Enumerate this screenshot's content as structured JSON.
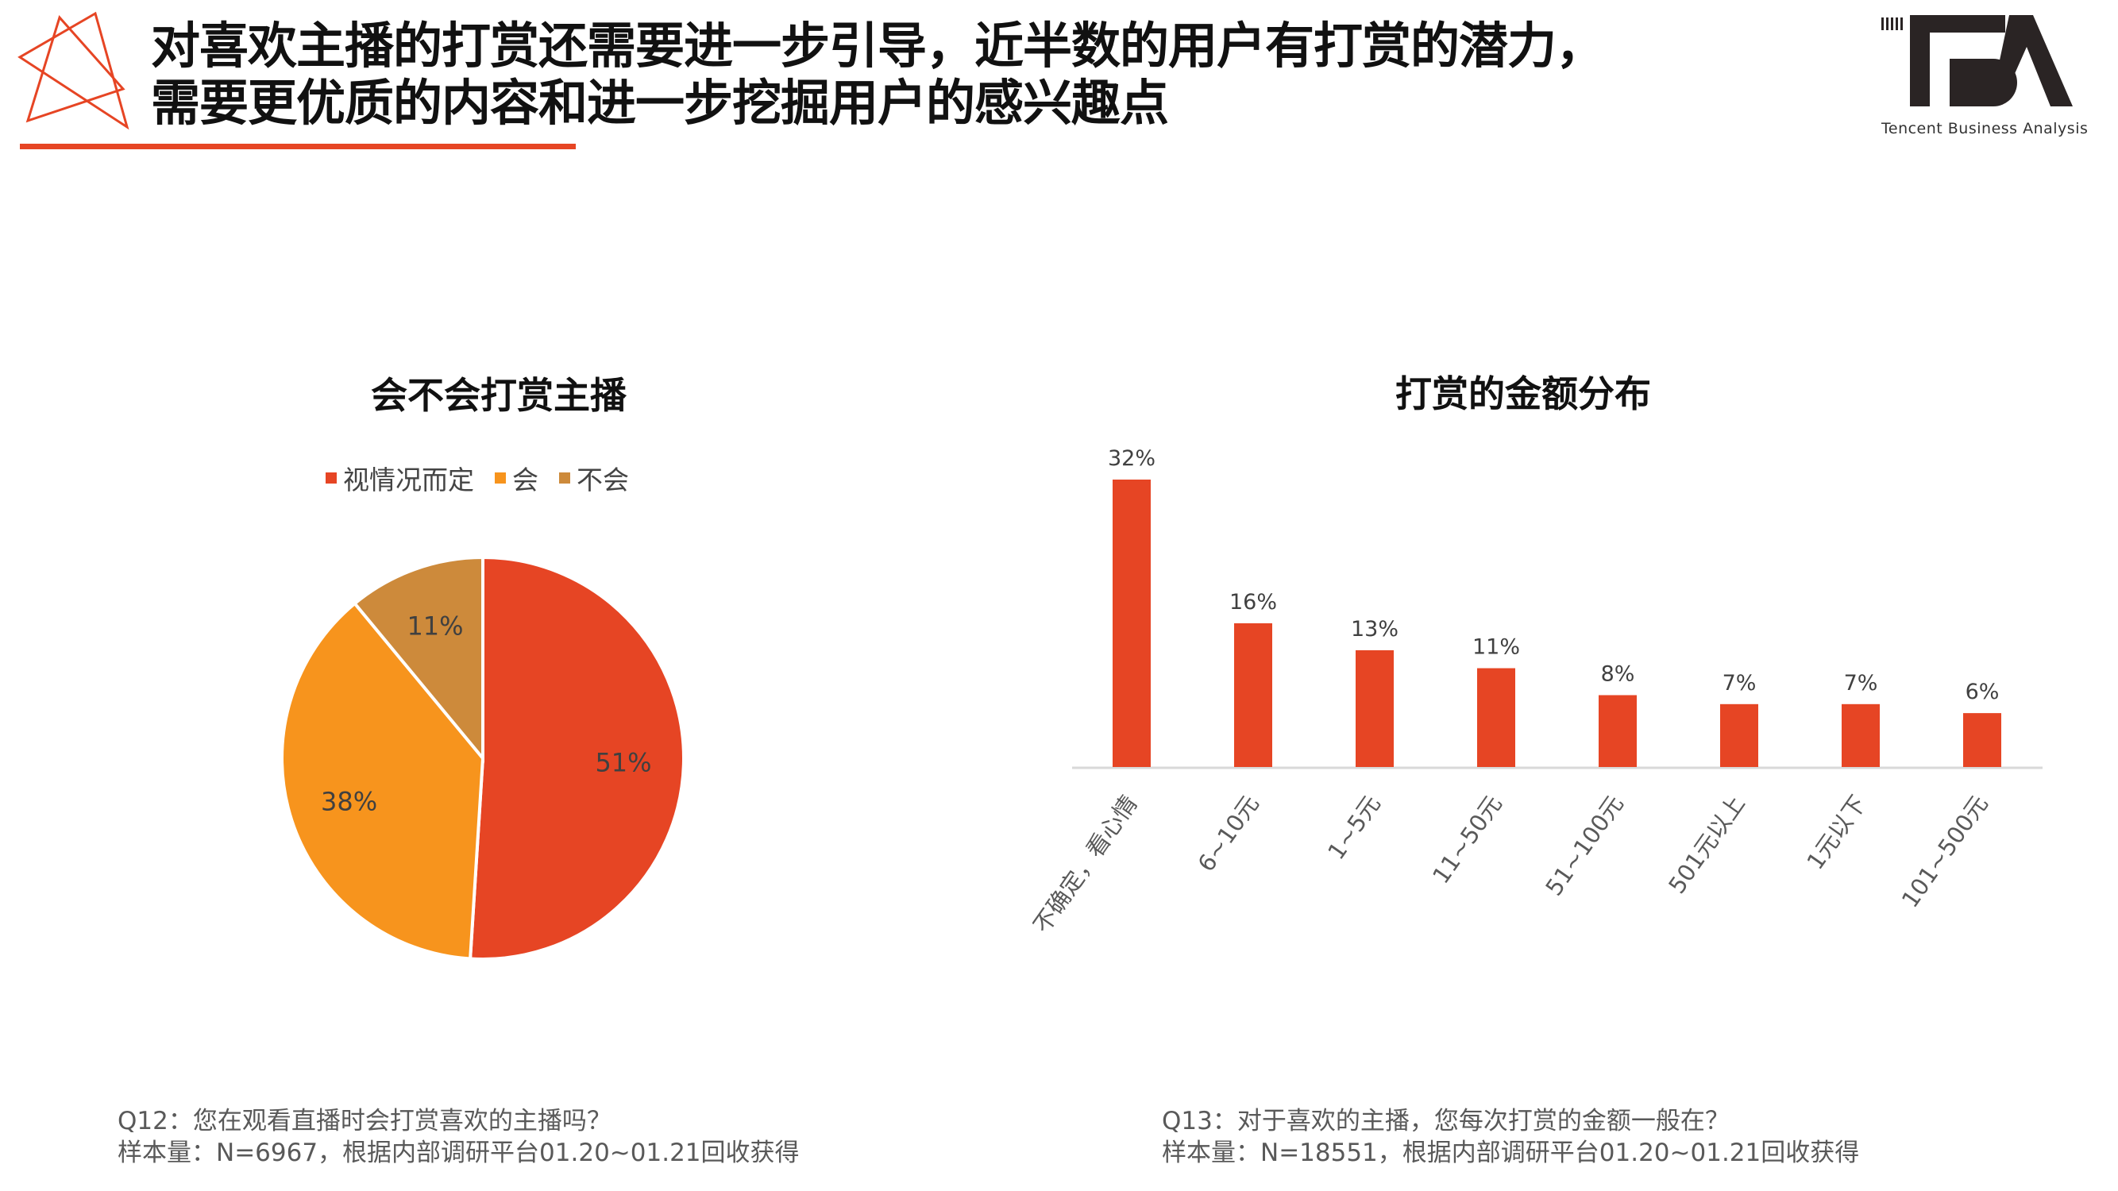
{
  "header": {
    "title_line1": "对喜欢主播的打赏还需要进一步引导，近半数的用户有打赏的潜力，",
    "title_line2": "需要更优质的内容和进一步挖掘用户的感兴趣点",
    "accent_color": "#E64524",
    "logo_text": "TBA",
    "logo_subtitle": "Tencent Business Analysis"
  },
  "chart_data": [
    {
      "type": "pie",
      "title": "会不会打赏主播",
      "legend_position": "top",
      "categories": [
        "视情况而定",
        "会",
        "不会"
      ],
      "values": [
        51,
        38,
        11
      ],
      "labels": [
        "51%",
        "38%",
        "11%"
      ],
      "colors": [
        "#E64524",
        "#F7941D",
        "#CD8A3B"
      ]
    },
    {
      "type": "bar",
      "title": "打赏的金额分布",
      "categories": [
        "不确定，看心情",
        "6~10元",
        "1~5元",
        "11~50元",
        "51~100元",
        "501元以上",
        "1元以下",
        "101~500元"
      ],
      "values": [
        32,
        16,
        13,
        11,
        8,
        7,
        7,
        6
      ],
      "labels": [
        "32%",
        "16%",
        "13%",
        "11%",
        "8%",
        "7%",
        "7%",
        "6%"
      ],
      "color": "#E64524",
      "grid": false,
      "ylim": [
        0,
        32
      ]
    }
  ],
  "footnotes": {
    "left_q": "Q12：您在观看直播时会打赏喜欢的主播吗？",
    "left_sample": "样本量：N=6967，根据内部调研平台01.20~01.21回收获得",
    "right_q": "Q13：对于喜欢的主播，您每次打赏的金额一般在？",
    "right_sample": "样本量：N=18551，根据内部调研平台01.20~01.21回收获得"
  }
}
